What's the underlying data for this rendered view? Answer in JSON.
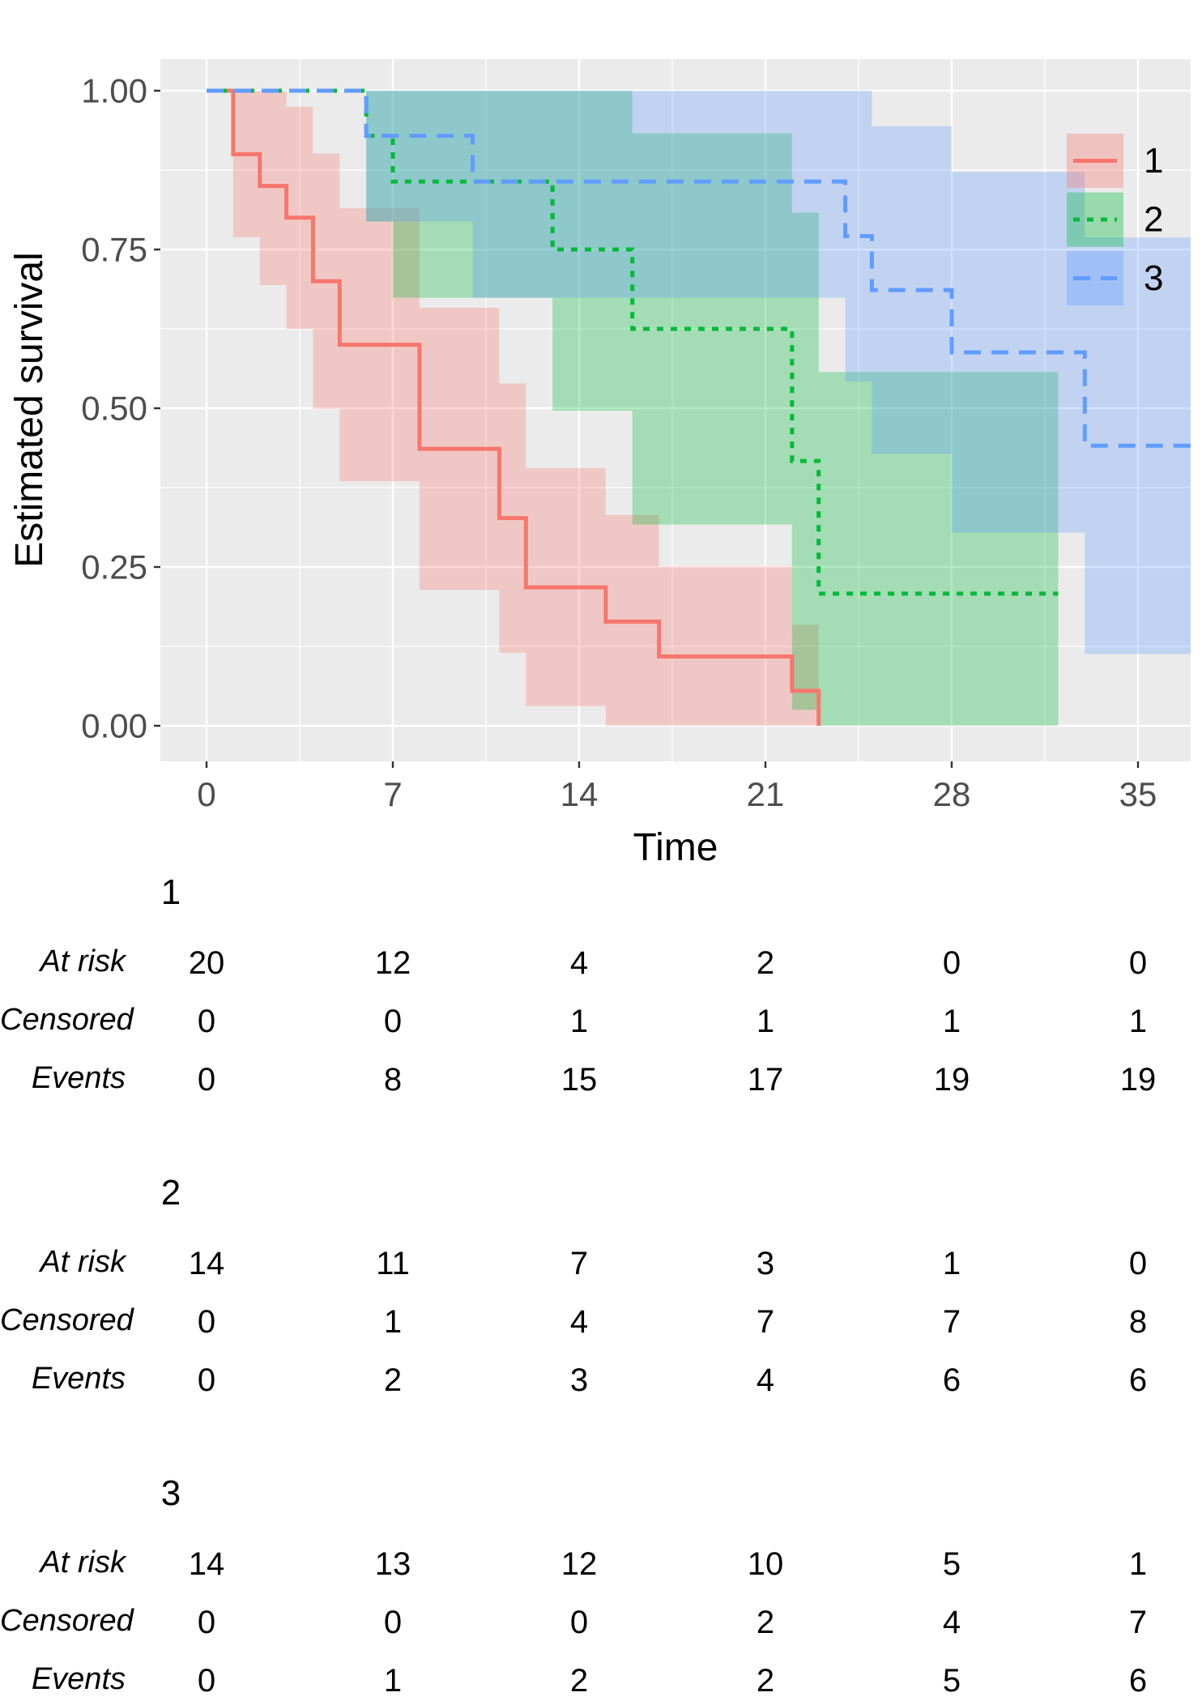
{
  "chart_data": {
    "type": "line",
    "subtype": "kaplan-meier-step-with-confidence-bands",
    "title": "",
    "xlabel": "Time",
    "ylabel": "Estimated survival",
    "xlim": [
      -1.7,
      37.0
    ],
    "ylim": [
      0,
      1
    ],
    "grid": true,
    "x_ticks": [
      0,
      7,
      14,
      21,
      28,
      35
    ],
    "x_tick_labels": [
      "0",
      "7",
      "14",
      "21",
      "28",
      "35"
    ],
    "x_minor_ticks": [
      3.5,
      10.5,
      17.5,
      24.5,
      31.5
    ],
    "y_ticks": [
      1.0,
      0.75,
      0.5,
      0.25,
      0.0
    ],
    "y_tick_labels": [
      "1.00",
      "0.75",
      "0.50",
      "0.25",
      "0.00"
    ],
    "y_minor_ticks": [
      0.875,
      0.625,
      0.375,
      0.125
    ],
    "colors": {
      "panel_bg": "#EBEBEB",
      "grid": "#FFFFFF",
      "tick_mark": "#333333",
      "tick_text": "#4D4D4D",
      "band_opacity": 0.3
    },
    "legend": {
      "position": "inside-right",
      "entries": [
        "1",
        "2",
        "3"
      ]
    },
    "series": [
      {
        "name": "1",
        "color": "#F8766D",
        "dash": "solid",
        "steps": [
          {
            "t0": 0,
            "t1": 1,
            "s": 1.0,
            "lo": null,
            "hi": null
          },
          {
            "t0": 1,
            "t1": 2,
            "s": 0.9,
            "lo": 0.769,
            "hi": 1.0
          },
          {
            "t0": 2,
            "t1": 3,
            "s": 0.85,
            "lo": 0.694,
            "hi": 1.0
          },
          {
            "t0": 3,
            "t1": 4,
            "s": 0.8,
            "lo": 0.625,
            "hi": 0.975
          },
          {
            "t0": 4,
            "t1": 5,
            "s": 0.7,
            "lo": 0.499,
            "hi": 0.901
          },
          {
            "t0": 5,
            "t1": 8,
            "s": 0.6,
            "lo": 0.385,
            "hi": 0.815
          },
          {
            "t0": 8,
            "t1": 11,
            "s": 0.436,
            "lo": 0.214,
            "hi": 0.658
          },
          {
            "t0": 11,
            "t1": 12,
            "s": 0.327,
            "lo": 0.115,
            "hi": 0.539
          },
          {
            "t0": 12,
            "t1": 15,
            "s": 0.218,
            "lo": 0.031,
            "hi": 0.406
          },
          {
            "t0": 15,
            "t1": 17,
            "s": 0.164,
            "lo": 0.0,
            "hi": 0.332
          },
          {
            "t0": 17,
            "t1": 22,
            "s": 0.109,
            "lo": 0.0,
            "hi": 0.251
          },
          {
            "t0": 22,
            "t1": 23,
            "s": 0.055,
            "lo": 0.0,
            "hi": 0.159
          },
          {
            "t0": 23,
            "t1": 23,
            "s": 0.0,
            "lo": null,
            "hi": null
          }
        ]
      },
      {
        "name": "2",
        "color": "#00BA38",
        "dash": "dotted",
        "steps": [
          {
            "t0": 0,
            "t1": 6,
            "s": 1.0,
            "lo": null,
            "hi": null
          },
          {
            "t0": 6,
            "t1": 7,
            "s": 0.929,
            "lo": 0.794,
            "hi": 1.0
          },
          {
            "t0": 7,
            "t1": 13,
            "s": 0.857,
            "lo": 0.674,
            "hi": 1.0
          },
          {
            "t0": 13,
            "t1": 16,
            "s": 0.75,
            "lo": 0.496,
            "hi": 1.0
          },
          {
            "t0": 16,
            "t1": 22,
            "s": 0.625,
            "lo": 0.317,
            "hi": 0.933
          },
          {
            "t0": 22,
            "t1": 23,
            "s": 0.417,
            "lo": 0.025,
            "hi": 0.808
          },
          {
            "t0": 23,
            "t1": 32,
            "s": 0.208,
            "lo": 0.0,
            "hi": 0.557
          }
        ]
      },
      {
        "name": "3",
        "color": "#619CFF",
        "dash": "dashed",
        "steps": [
          {
            "t0": 0,
            "t1": 6,
            "s": 1.0,
            "lo": null,
            "hi": null
          },
          {
            "t0": 6,
            "t1": 10,
            "s": 0.929,
            "lo": 0.794,
            "hi": 1.0
          },
          {
            "t0": 10,
            "t1": 24,
            "s": 0.857,
            "lo": 0.674,
            "hi": 1.0
          },
          {
            "t0": 24,
            "t1": 25,
            "s": 0.771,
            "lo": 0.542,
            "hi": 1.0
          },
          {
            "t0": 25,
            "t1": 28,
            "s": 0.686,
            "lo": 0.428,
            "hi": 0.944
          },
          {
            "t0": 28,
            "t1": 33,
            "s": 0.588,
            "lo": 0.304,
            "hi": 0.872
          },
          {
            "t0": 33,
            "t1": 37,
            "s": 0.441,
            "lo": 0.113,
            "hi": 0.769
          }
        ]
      }
    ]
  },
  "risk_tables": {
    "row_labels": [
      "At risk",
      "Censored",
      "Events"
    ],
    "times": [
      0,
      7,
      14,
      21,
      28,
      35
    ],
    "groups": [
      {
        "name": "1",
        "at_risk": [
          20,
          12,
          4,
          2,
          0,
          0
        ],
        "censored": [
          0,
          0,
          1,
          1,
          1,
          1
        ],
        "events": [
          0,
          8,
          15,
          17,
          19,
          19
        ]
      },
      {
        "name": "2",
        "at_risk": [
          14,
          11,
          7,
          3,
          1,
          0
        ],
        "censored": [
          0,
          1,
          4,
          7,
          7,
          8
        ],
        "events": [
          0,
          2,
          3,
          4,
          6,
          6
        ]
      },
      {
        "name": "3",
        "at_risk": [
          14,
          13,
          12,
          10,
          5,
          1
        ],
        "censored": [
          0,
          0,
          0,
          2,
          4,
          7
        ],
        "events": [
          0,
          1,
          2,
          2,
          5,
          6
        ]
      }
    ]
  }
}
